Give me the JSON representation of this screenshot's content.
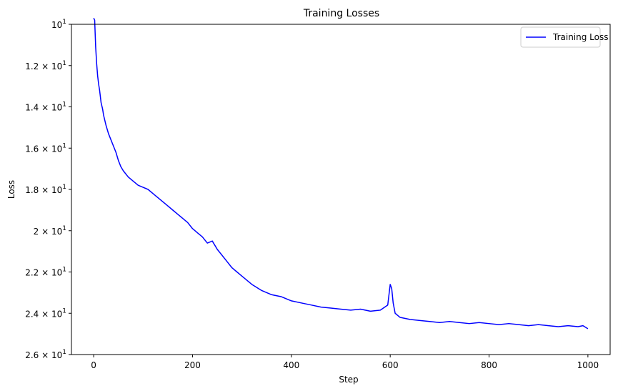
{
  "chart_data": {
    "type": "line",
    "title": "Training Losses",
    "xlabel": "Step",
    "ylabel": "Loss",
    "y_axis_inverted": true,
    "xlim": [
      -45,
      1045
    ],
    "ylim": [
      10,
      26
    ],
    "x_ticks": [
      0,
      200,
      400,
      600,
      800,
      1000
    ],
    "x_tick_labels": [
      "0",
      "200",
      "400",
      "600",
      "800",
      "1000"
    ],
    "y_ticks": [
      10,
      12,
      14,
      16,
      18,
      20,
      22,
      24,
      26
    ],
    "y_tick_mantissas": [
      "",
      "1.2",
      "1.4",
      "1.6",
      "1.8",
      "2",
      "2.2",
      "2.4",
      "2.6"
    ],
    "y_tick_base": "10",
    "y_tick_exponent": "1",
    "times_sign": "×",
    "legend": {
      "position": "top-right",
      "entries": [
        "Training Loss"
      ]
    },
    "grid": false,
    "series": [
      {
        "name": "Training Loss",
        "color": "#0000ff",
        "x": [
          0,
          2,
          4,
          6,
          8,
          10,
          12,
          15,
          18,
          20,
          25,
          30,
          35,
          40,
          45,
          50,
          55,
          60,
          70,
          80,
          90,
          100,
          110,
          120,
          130,
          140,
          150,
          160,
          170,
          180,
          190,
          200,
          210,
          220,
          230,
          240,
          250,
          260,
          270,
          280,
          290,
          300,
          320,
          340,
          360,
          380,
          400,
          420,
          440,
          460,
          480,
          500,
          520,
          540,
          560,
          580,
          595,
          600,
          603,
          606,
          610,
          615,
          620,
          640,
          660,
          680,
          700,
          720,
          740,
          760,
          780,
          800,
          820,
          840,
          860,
          880,
          900,
          920,
          940,
          960,
          980,
          990,
          1000
        ],
        "y": [
          9.7,
          9.8,
          11.1,
          11.9,
          12.5,
          12.9,
          13.2,
          13.8,
          14.1,
          14.4,
          14.9,
          15.3,
          15.6,
          15.9,
          16.2,
          16.6,
          16.9,
          17.1,
          17.4,
          17.6,
          17.8,
          17.9,
          18.0,
          18.2,
          18.4,
          18.6,
          18.8,
          19.0,
          19.2,
          19.4,
          19.6,
          19.9,
          20.1,
          20.3,
          20.6,
          20.5,
          20.9,
          21.2,
          21.5,
          21.8,
          22.0,
          22.2,
          22.6,
          22.9,
          23.1,
          23.2,
          23.4,
          23.5,
          23.6,
          23.7,
          23.75,
          23.8,
          23.85,
          23.8,
          23.9,
          23.85,
          23.6,
          22.6,
          22.8,
          23.5,
          24.0,
          24.1,
          24.2,
          24.3,
          24.35,
          24.4,
          24.45,
          24.4,
          24.45,
          24.5,
          24.45,
          24.5,
          24.55,
          24.5,
          24.55,
          24.6,
          24.55,
          24.6,
          24.65,
          24.6,
          24.65,
          24.6,
          24.75
        ]
      }
    ]
  }
}
